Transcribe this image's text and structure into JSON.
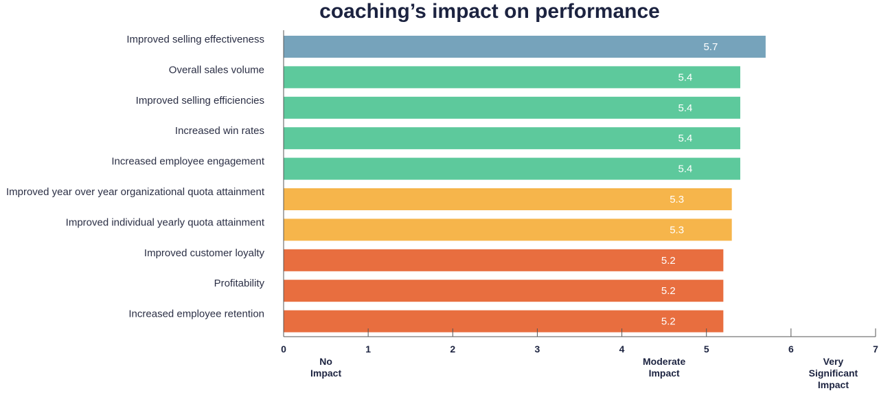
{
  "chart_data": {
    "type": "bar",
    "orientation": "horizontal",
    "title": "coaching’s impact on performance",
    "categories": [
      "Improved selling effectiveness",
      "Overall sales volume",
      "Improved selling efficiencies",
      "Increased win rates",
      "Increased employee engagement",
      "Improved year over year organizational quota attainment",
      "Improved individual yearly quota attainment",
      "Improved customer loyalty",
      "Profitability",
      "Increased employee retention"
    ],
    "values": [
      5.7,
      5.4,
      5.4,
      5.4,
      5.4,
      5.3,
      5.3,
      5.2,
      5.2,
      5.2
    ],
    "bar_colors": [
      "#76a3bb",
      "#5dc99c",
      "#5dc99c",
      "#5dc99c",
      "#5dc99c",
      "#f6b54b",
      "#f6b54b",
      "#e86e3f",
      "#e86e3f",
      "#e86e3f"
    ],
    "xlim": [
      0,
      7
    ],
    "xticks": [
      "0",
      "1",
      "2",
      "3",
      "4",
      "5",
      "6",
      "7"
    ],
    "axis_annotations": [
      {
        "at": 0.5,
        "lines": [
          "No",
          "Impact"
        ]
      },
      {
        "at": 4.5,
        "lines": [
          "Moderate",
          "Impact"
        ]
      },
      {
        "at": 6.5,
        "lines": [
          "Very",
          "Significant",
          "Impact"
        ]
      }
    ],
    "xlabel": "",
    "ylabel": "",
    "grid": false,
    "legend": "none"
  }
}
